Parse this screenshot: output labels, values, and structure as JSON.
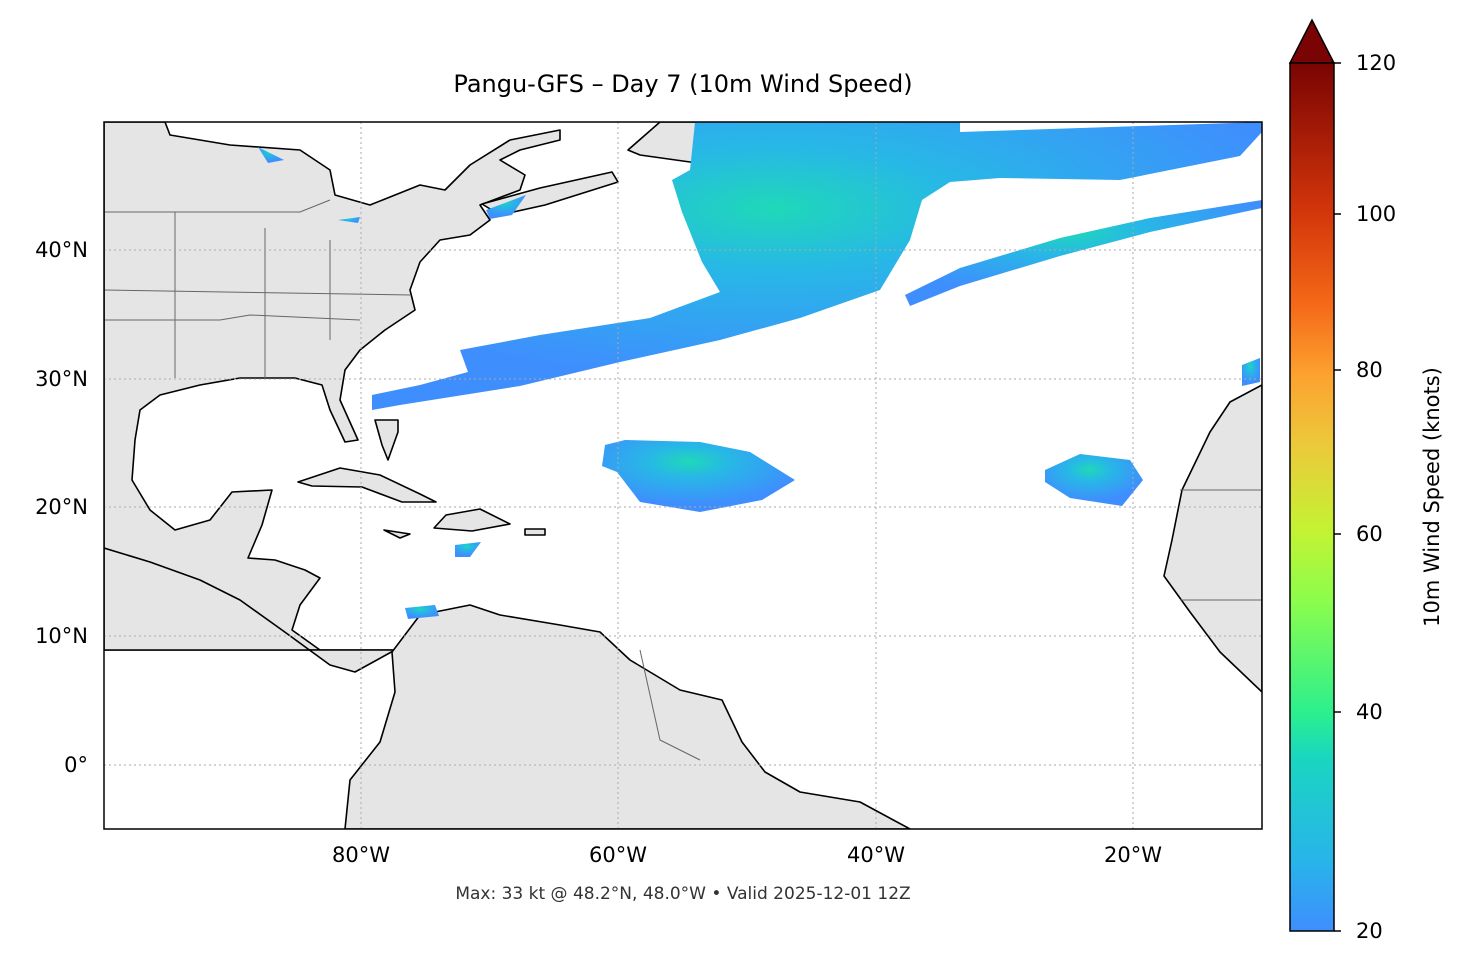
{
  "title": "Pangu-GFS – Day 7 (10m Wind Speed)",
  "footer": "Max: 33 kt @ 48.2°N, 48.0°W • Valid 2025-12-01 12Z",
  "colorbar": {
    "label": "10m Wind Speed (knots)",
    "ticks": [
      "20",
      "40",
      "60",
      "80",
      "100",
      "120"
    ],
    "colors": [
      "#3f8efe",
      "#1fcfd0",
      "#2ef08a",
      "#a4fc3c",
      "#e2dc38",
      "#fdab33",
      "#f06a15",
      "#c92905",
      "#7a0403"
    ],
    "extend": "max"
  },
  "map": {
    "x_ticks": [
      "80°W",
      "60°W",
      "40°W",
      "20°W"
    ],
    "y_ticks": [
      "40°N",
      "30°N",
      "20°N",
      "10°N",
      "0°"
    ],
    "land_color": "#e5e5e5",
    "gridlines": "dotted"
  },
  "chart_data": {
    "type": "heatmap",
    "title": "Pangu-GFS – Day 7 (10m Wind Speed)",
    "variable": "10m Wind Speed (knots)",
    "lon_range": [
      -100,
      -10
    ],
    "lat_range": [
      -5,
      50
    ],
    "value_range": [
      20,
      120
    ],
    "max": {
      "value_kt": 33,
      "lat": 48.2,
      "lon": -48.0
    },
    "valid": "2025-12-01 12Z"
  }
}
